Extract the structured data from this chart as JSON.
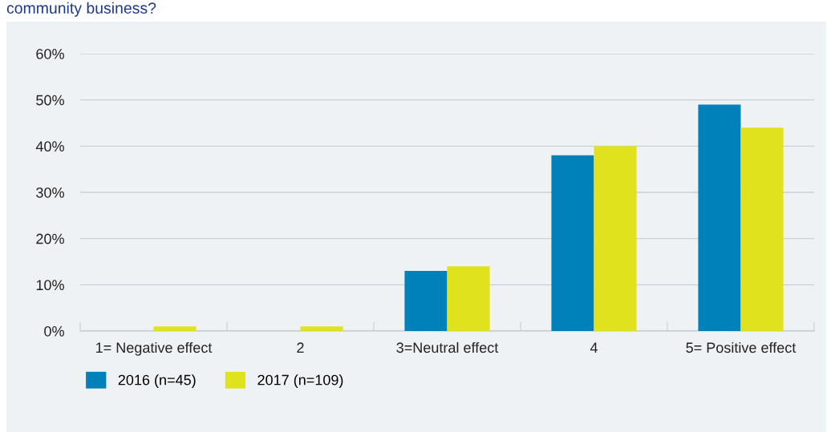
{
  "chart_data": {
    "type": "bar",
    "title": "community business?",
    "categories": [
      "1= Negative effect",
      "2",
      "3=Neutral effect",
      "4",
      "5= Positive effect"
    ],
    "series": [
      {
        "name": "2016 (n=45)",
        "color": "#0081b9",
        "values": [
          0,
          0,
          13,
          38,
          49
        ]
      },
      {
        "name": "2017 (n=109)",
        "color": "#e1e21e",
        "values": [
          1,
          1,
          14,
          40,
          44
        ]
      }
    ],
    "ylim": [
      0,
      60
    ],
    "yticks": [
      {
        "value": 0,
        "label": "0%"
      },
      {
        "value": 10,
        "label": "10%"
      },
      {
        "value": 20,
        "label": "20%"
      },
      {
        "value": 30,
        "label": "30%"
      },
      {
        "value": 40,
        "label": "40%"
      },
      {
        "value": 50,
        "label": "50%"
      },
      {
        "value": 60,
        "label": "60%"
      }
    ],
    "grid": "y",
    "legend": "bottom left"
  }
}
